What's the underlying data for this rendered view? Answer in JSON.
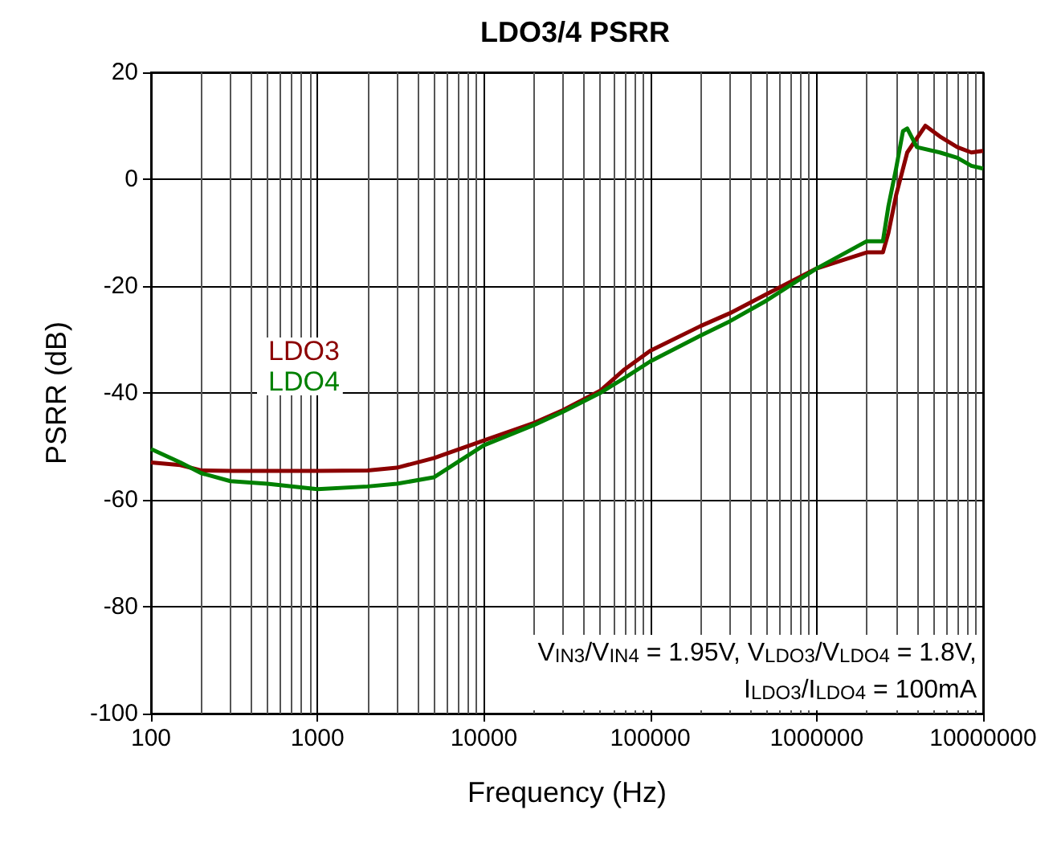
{
  "chart_data": {
    "type": "line",
    "title": "LDO3/4 PSRR",
    "xlabel": "Frequency (Hz)",
    "ylabel": "PSRR (dB)",
    "log": "x",
    "xlim": [
      100,
      10000000
    ],
    "xticks": [
      100,
      1000,
      10000,
      100000,
      1000000,
      10000000
    ],
    "ylim": [
      -100,
      20
    ],
    "yticks": [
      -100,
      -80,
      -60,
      -40,
      -20,
      0,
      20
    ],
    "grid": true,
    "legend": "left",
    "marker": "none",
    "line_style": "solid",
    "annotations": [
      "V$_{IN3}$/V$_{IN4}$ = 1.95V, V$_{LDO3}$/V$_{LDO4}$ = 1.8V,\nI$_{LDO3}$/I$_{LDO4}$ = 100mA"
    ],
    "series": [
      {
        "name": "LDO3",
        "color": "#8b0000",
        "x": [
          100,
          150,
          200,
          300,
          500,
          1000,
          2000,
          3000,
          5000,
          10000,
          20000,
          30000,
          50000,
          70000,
          100000,
          200000,
          300000,
          500000,
          1000000,
          2000000,
          2500000,
          2700000,
          3000000,
          3500000,
          4500000,
          5500000,
          7000000,
          8500000,
          10000000
        ],
        "values": [
          -53,
          -53.5,
          -54.5,
          -54.6,
          -54.6,
          -54.6,
          -54.5,
          -54,
          -52.2,
          -48.9,
          -45.6,
          -43.2,
          -39.6,
          -35.6,
          -32.1,
          -27.5,
          -25.1,
          -21.5,
          -16.7,
          -13.7,
          -13.7,
          -10,
          -3,
          5,
          10,
          8,
          6,
          5,
          5.3
        ]
      },
      {
        "name": "LDO4",
        "color": "#008000",
        "x": [
          100,
          150,
          200,
          300,
          500,
          1000,
          2000,
          3000,
          5000,
          10000,
          20000,
          30000,
          50000,
          70000,
          100000,
          200000,
          300000,
          500000,
          1000000,
          2000000,
          2500000,
          2700000,
          3000000,
          3300000,
          3500000,
          4000000,
          5500000,
          7000000,
          8500000,
          10000000
        ],
        "values": [
          -50.5,
          -53,
          -55,
          -56.5,
          -57,
          -58,
          -57.5,
          -57,
          -55.8,
          -49.8,
          -46,
          -43.5,
          -40,
          -37.2,
          -34.1,
          -29.3,
          -26.6,
          -22.7,
          -16.7,
          -11.6,
          -11.6,
          -5,
          2,
          9,
          9.5,
          6,
          5,
          4,
          2.5,
          2
        ]
      }
    ]
  }
}
